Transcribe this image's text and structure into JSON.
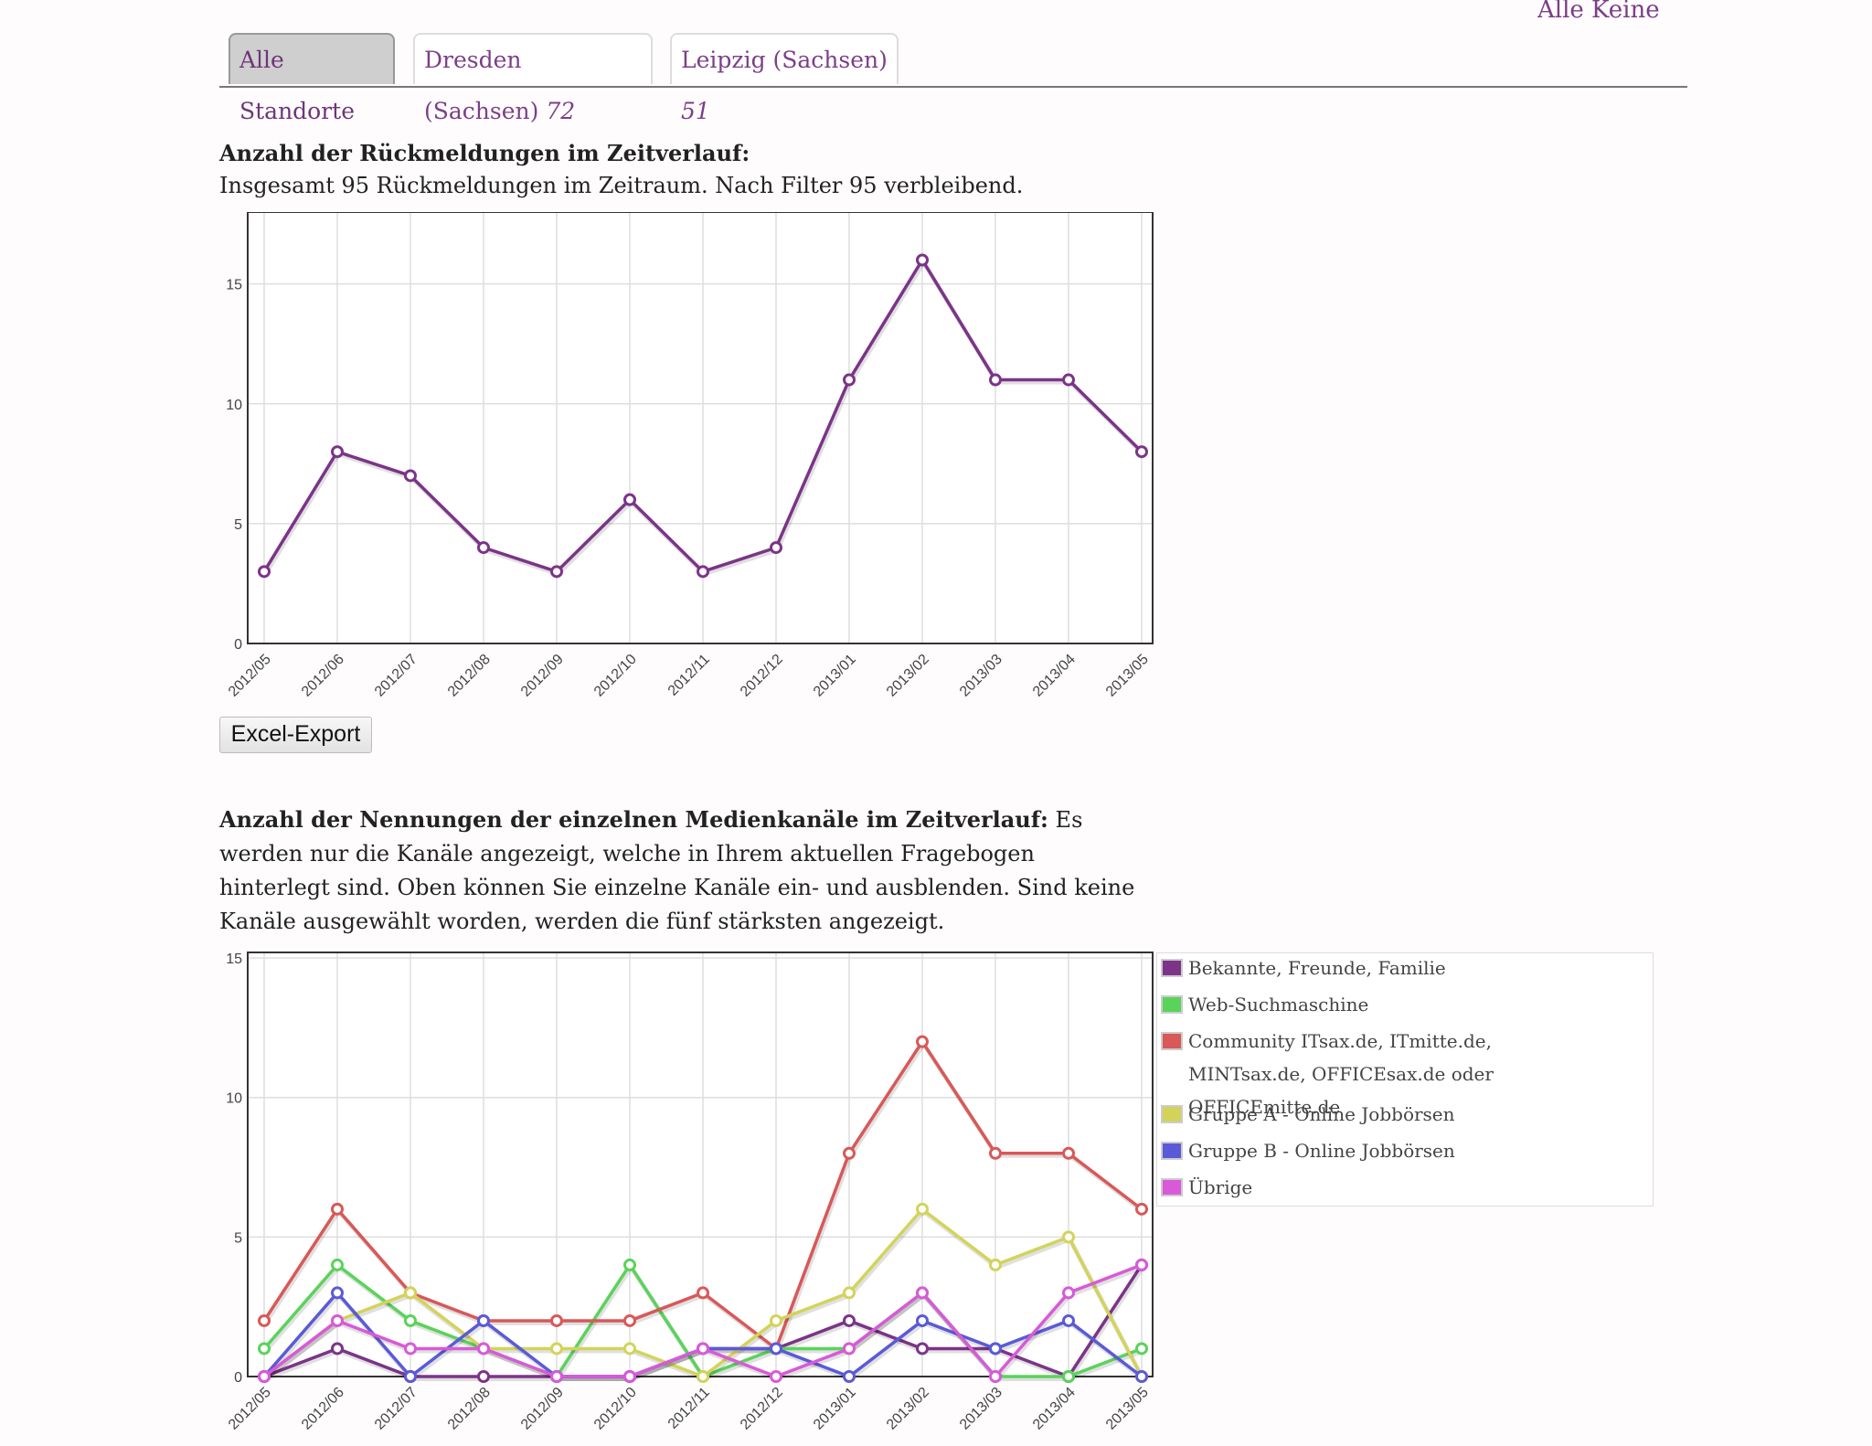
{
  "header": {
    "top_right_links": "Alle Keine"
  },
  "tabs": [
    {
      "label": "Alle Standorte",
      "count": ""
    },
    {
      "label": "Dresden (Sachsen)",
      "count": "72"
    },
    {
      "label": "Leipzig (Sachsen)",
      "count": "51"
    }
  ],
  "section1": {
    "title": "Anzahl der Rückmeldungen im Zeitverlauf:",
    "subtitle": "Insgesamt 95 Rückmeldungen im Zeitraum. Nach Filter 95 verbleibend.",
    "export_label": "Excel-Export"
  },
  "section2": {
    "title": "Anzahl der Nennungen der einzelnen Medienkanäle im Zeitverlauf:",
    "description": "Es werden nur die Kanäle angezeigt, welche in Ihrem aktuellen Fragebogen hinterlegt sind. Oben können Sie einzelne Kanäle ein- und ausblenden. Sind keine Kanäle ausgewählt worden, werden die fünf stärksten angezeigt."
  },
  "colors": {
    "accent": "#7b3f88"
  },
  "chart_data": [
    {
      "type": "line",
      "title": "Anzahl der Rückmeldungen im Zeitverlauf",
      "categories": [
        "2012/05",
        "2012/06",
        "2012/07",
        "2012/08",
        "2012/09",
        "2012/10",
        "2012/11",
        "2012/12",
        "2013/01",
        "2013/02",
        "2013/03",
        "2013/04",
        "2013/05"
      ],
      "series": [
        {
          "name": "Rückmeldungen",
          "color": "#7b3488",
          "values": [
            3,
            8,
            7,
            4,
            3,
            6,
            3,
            4,
            11,
            16,
            11,
            11,
            8
          ]
        }
      ],
      "ylim": [
        0,
        18
      ],
      "yticks": [
        0,
        5,
        10,
        15
      ],
      "grid": true
    },
    {
      "type": "line",
      "title": "Anzahl der Nennungen der einzelnen Medienkanäle im Zeitverlauf",
      "categories": [
        "2012/05",
        "2012/06",
        "2012/07",
        "2012/08",
        "2012/09",
        "2012/10",
        "2012/11",
        "2012/12",
        "2013/01",
        "2013/02",
        "2013/03",
        "2013/04",
        "2013/05"
      ],
      "series": [
        {
          "name": "Bekannte, Freunde, Familie",
          "color": "#7b3488",
          "values": [
            0,
            1,
            0,
            0,
            0,
            0,
            1,
            1,
            2,
            1,
            1,
            0,
            4
          ]
        },
        {
          "name": "Web-Suchmaschine",
          "color": "#5ad35a",
          "values": [
            1,
            4,
            2,
            1,
            0,
            4,
            0,
            1,
            1,
            3,
            0,
            0,
            1
          ]
        },
        {
          "name": "Community ITsax.de, ITmitte.de, MINTsax.de, OFFICEsax.de oder OFFICEmitte.de",
          "color": "#d95858",
          "values": [
            2,
            6,
            3,
            2,
            2,
            2,
            3,
            1,
            8,
            12,
            8,
            8,
            6
          ]
        },
        {
          "name": "Gruppe A - Online Jobbörsen",
          "color": "#d3d35a",
          "values": [
            0,
            2,
            3,
            1,
            1,
            1,
            0,
            2,
            3,
            6,
            4,
            5,
            0
          ]
        },
        {
          "name": "Gruppe B - Online Jobbörsen",
          "color": "#5a5ad8",
          "values": [
            0,
            3,
            0,
            2,
            0,
            0,
            1,
            1,
            0,
            2,
            1,
            2,
            0
          ]
        },
        {
          "name": "Übrige",
          "color": "#d85ad8",
          "values": [
            0,
            2,
            1,
            1,
            0,
            0,
            1,
            0,
            1,
            3,
            0,
            3,
            4
          ]
        }
      ],
      "ylim": [
        0,
        15.2
      ],
      "yticks": [
        0,
        5,
        10,
        15
      ],
      "legend": "right",
      "grid": true
    }
  ]
}
